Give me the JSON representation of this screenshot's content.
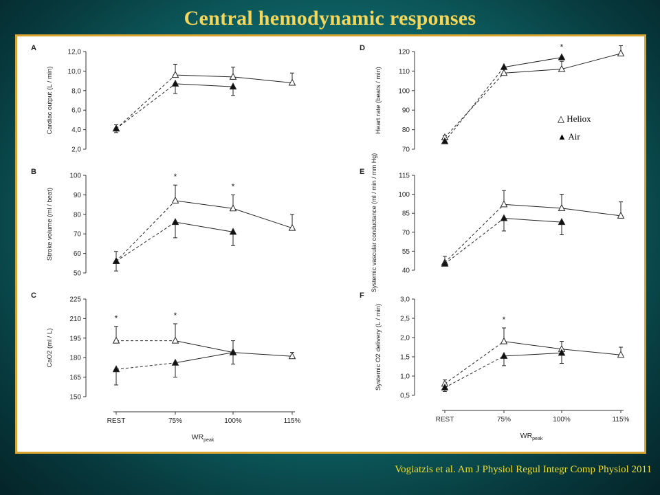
{
  "slide": {
    "title": "Central hemodynamic responses",
    "citation": "Vogiatzis et al. Am J Physiol Regul Integr Comp Physiol 2011"
  },
  "legend": {
    "entries": [
      {
        "name": "Heliox",
        "marker": "open-triangle"
      },
      {
        "name": "Air",
        "marker": "filled-triangle"
      }
    ]
  },
  "x_axis_label": "WR",
  "x_axis_label_sub": "peak",
  "chart_data": [
    {
      "panel": "A",
      "type": "line",
      "ylabel": "Cardiac output  (L / min)",
      "ylim": [
        2,
        12
      ],
      "yticks": [
        "2,0",
        "4,0",
        "6,0",
        "8,0",
        "10,0",
        "12,0"
      ],
      "categories": [
        "REST",
        "75%",
        "100%",
        "115%"
      ],
      "series": [
        {
          "name": "Heliox",
          "values": [
            4.1,
            9.6,
            9.4,
            8.8
          ],
          "errors": [
            0.4,
            1.1,
            1.0,
            1.0
          ]
        },
        {
          "name": "Air",
          "values": [
            4.1,
            8.7,
            8.4,
            null
          ],
          "errors": [
            0.4,
            1.0,
            0.9,
            null
          ]
        }
      ],
      "significance": []
    },
    {
      "panel": "B",
      "type": "line",
      "ylabel": "Stroke volume (ml / beat)",
      "ylim": [
        50,
        100
      ],
      "yticks": [
        "50",
        "60",
        "70",
        "80",
        "90",
        "100"
      ],
      "categories": [
        "REST",
        "75%",
        "100%",
        "115%"
      ],
      "series": [
        {
          "name": "Heliox",
          "values": [
            56,
            87,
            83,
            73
          ],
          "errors": [
            5,
            8,
            7,
            7
          ]
        },
        {
          "name": "Air",
          "values": [
            56,
            76,
            71,
            null
          ],
          "errors": [
            5,
            8,
            7,
            null
          ]
        }
      ],
      "significance": [
        "75%",
        "100%"
      ]
    },
    {
      "panel": "C",
      "type": "line",
      "ylabel": "CaO2  (ml / L)",
      "ylim": [
        150,
        225
      ],
      "yticks": [
        "150",
        "165",
        "180",
        "195",
        "210",
        "225"
      ],
      "categories": [
        "REST",
        "75%",
        "100%",
        "115%"
      ],
      "series": [
        {
          "name": "Heliox",
          "values": [
            193,
            193,
            184,
            181
          ],
          "errors": [
            11,
            13,
            9,
            3
          ]
        },
        {
          "name": "Air",
          "values": [
            171,
            176,
            184,
            null
          ],
          "errors": [
            12,
            11,
            9,
            null
          ]
        }
      ],
      "significance": [
        "REST",
        "75%"
      ]
    },
    {
      "panel": "D",
      "type": "line",
      "ylabel": "Heart rate (beats / min)",
      "ylim": [
        70,
        120
      ],
      "yticks": [
        "70",
        "80",
        "90",
        "100",
        "110",
        "120"
      ],
      "categories": [
        "REST",
        "75%",
        "100%",
        "115%"
      ],
      "series": [
        {
          "name": "Heliox",
          "values": [
            76,
            109,
            111,
            119
          ],
          "errors": [
            1,
            3,
            4,
            4
          ]
        },
        {
          "name": "Air",
          "values": [
            74,
            112,
            117,
            null
          ],
          "errors": [
            1,
            1,
            1,
            null
          ]
        }
      ],
      "significance": [
        "100%"
      ]
    },
    {
      "panel": "E",
      "type": "line",
      "ylabel": "Systemic vascular conductance (ml / min / mm Hg)",
      "ylim": [
        40,
        115
      ],
      "yticks": [
        "40",
        "55",
        "70",
        "85",
        "100",
        "115"
      ],
      "categories": [
        "REST",
        "75%",
        "100%",
        "115%"
      ],
      "series": [
        {
          "name": "Heliox",
          "values": [
            46,
            92,
            89,
            83
          ],
          "errors": [
            5,
            11,
            11,
            11
          ]
        },
        {
          "name": "Air",
          "values": [
            45,
            81,
            78,
            null
          ],
          "errors": [
            1,
            10,
            10,
            null
          ]
        }
      ],
      "significance": []
    },
    {
      "panel": "F",
      "type": "line",
      "ylabel": "Systemic O2 delivery (L / min)",
      "ylim": [
        0.5,
        3.0
      ],
      "yticks": [
        "0,5",
        "1,0",
        "1,5",
        "2,0",
        "2,5",
        "3,0"
      ],
      "categories": [
        "REST",
        "75%",
        "100%",
        "115%"
      ],
      "series": [
        {
          "name": "Heliox",
          "values": [
            0.8,
            1.9,
            1.7,
            1.55
          ],
          "errors": [
            0.1,
            0.35,
            0.2,
            0.2
          ]
        },
        {
          "name": "Air",
          "values": [
            0.7,
            1.52,
            1.6,
            null
          ],
          "errors": [
            0.1,
            0.25,
            0.27,
            null
          ]
        }
      ],
      "significance": [
        "75%"
      ]
    }
  ]
}
